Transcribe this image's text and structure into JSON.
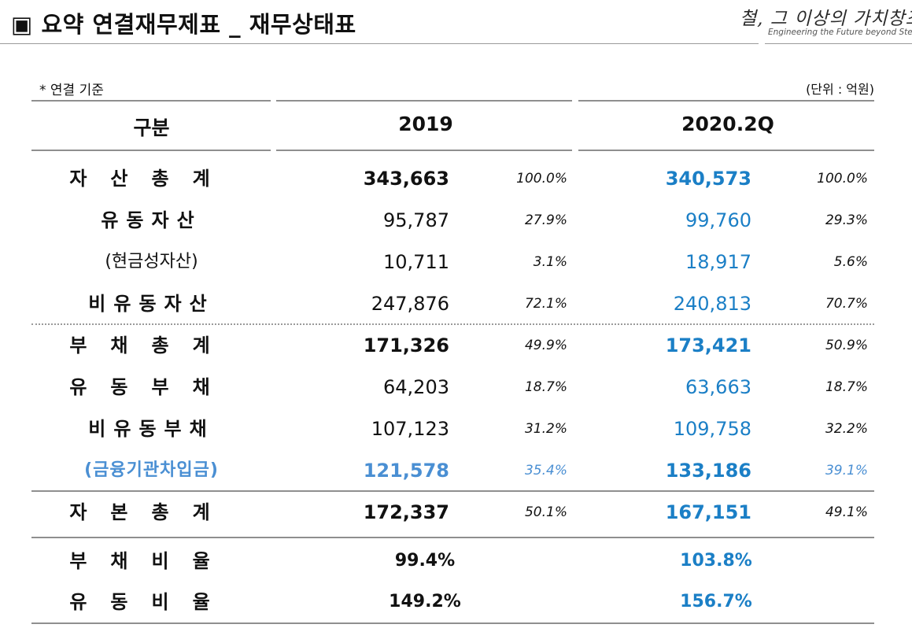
{
  "header": {
    "title": "▣ 요약 연결재무제표 _ 재무상태표",
    "logo_script": "철, 그 이상의 가치창조",
    "logo_sub": "Engineering the Future beyond Steel"
  },
  "notes": {
    "basis": "* 연결 기준",
    "unit": "(단위 : 억원)"
  },
  "columns": {
    "category": "구분",
    "y2019": "2019",
    "y2020": "2020.2Q"
  },
  "rows": [
    {
      "label": "자산총계",
      "v2019": "343,663",
      "p2019": "100.0%",
      "v2020": "340,573",
      "p2020": "100.0%"
    },
    {
      "label": "유동자산",
      "v2019": "95,787",
      "p2019": "27.9%",
      "v2020": "99,760",
      "p2020": "29.3%"
    },
    {
      "label": "(현금성자산)",
      "v2019": "10,711",
      "p2019": "3.1%",
      "v2020": "18,917",
      "p2020": "5.6%"
    },
    {
      "label": "비유동자산",
      "v2019": "247,876",
      "p2019": "72.1%",
      "v2020": "240,813",
      "p2020": "70.7%"
    },
    {
      "label": "부채총계",
      "v2019": "171,326",
      "p2019": "49.9%",
      "v2020": "173,421",
      "p2020": "50.9%"
    },
    {
      "label": "유동부채",
      "v2019": "64,203",
      "p2019": "18.7%",
      "v2020": "63,663",
      "p2020": "18.7%"
    },
    {
      "label": "비유동부채",
      "v2019": "107,123",
      "p2019": "31.2%",
      "v2020": "109,758",
      "p2020": "32.2%"
    },
    {
      "label": "(금융기관차입금)",
      "v2019": "121,578",
      "p2019": "35.4%",
      "v2020": "133,186",
      "p2020": "39.1%"
    },
    {
      "label": "자본총계",
      "v2019": "172,337",
      "p2019": "50.1%",
      "v2020": "167,151",
      "p2020": "49.1%"
    }
  ],
  "ratios": [
    {
      "label": "부채비율",
      "v2019": "99.4%",
      "v2020": "103.8%"
    },
    {
      "label": "유동비율",
      "v2019": "149.2%",
      "v2020": "156.7%"
    }
  ],
  "colors": {
    "accent_blue": "#1b7fc6",
    "finance_blue": "#4a8fd3",
    "rule_gray": "#8f8f8f"
  }
}
